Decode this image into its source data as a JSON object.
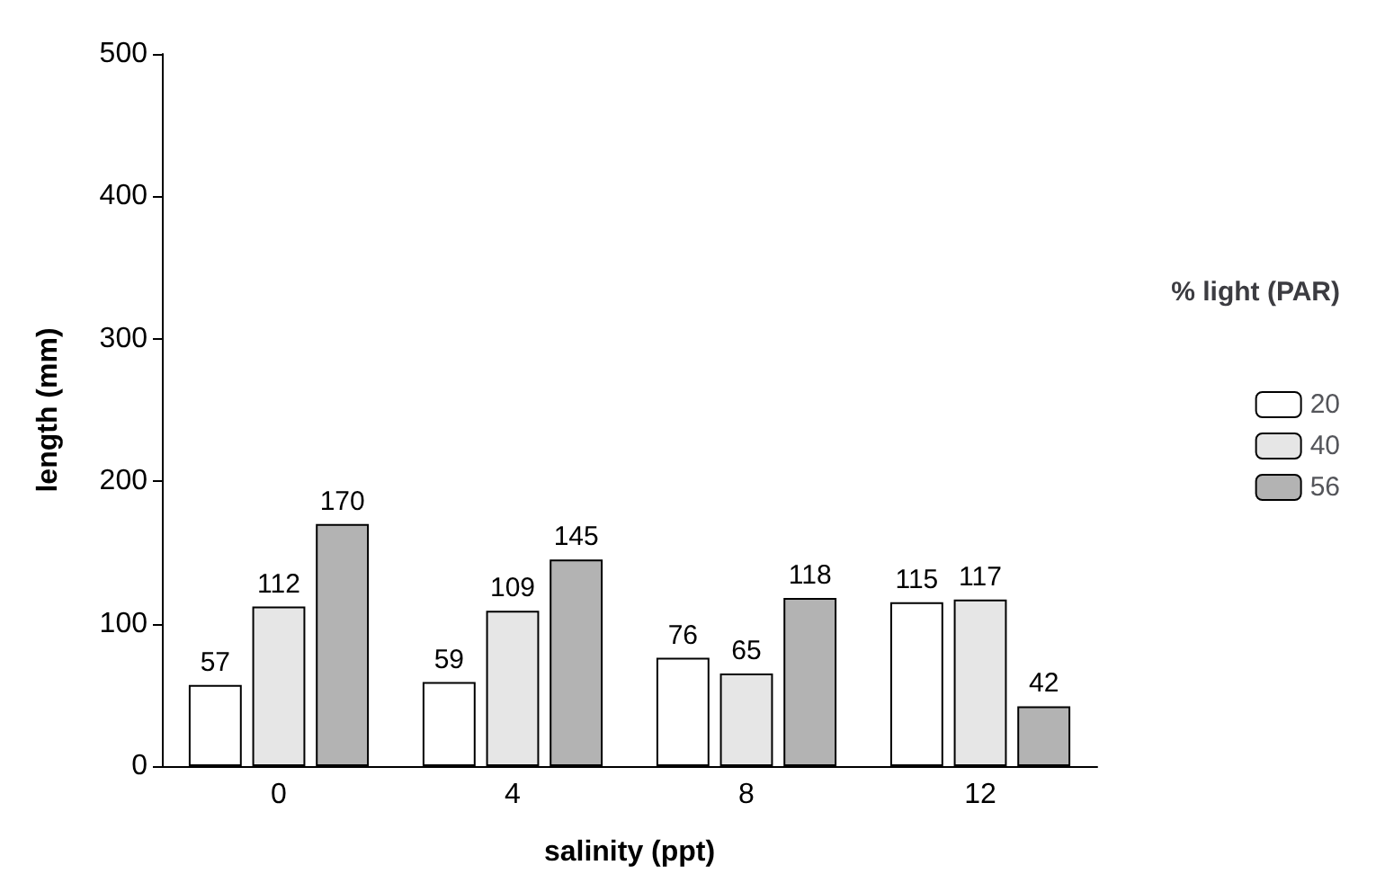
{
  "chart_data": {
    "type": "bar",
    "xlabel": "salinity (ppt)",
    "ylabel": "length (mm)",
    "legend_title": "% light (PAR)",
    "categories": [
      "0",
      "4",
      "8",
      "12"
    ],
    "series": [
      {
        "name": "20",
        "color": "#ffffff",
        "values": [
          57,
          59,
          76,
          115
        ]
      },
      {
        "name": "40",
        "color": "#e6e6e6",
        "values": [
          112,
          109,
          65,
          117
        ]
      },
      {
        "name": "56",
        "color": "#b3b3b3",
        "values": [
          170,
          145,
          118,
          42
        ]
      }
    ],
    "ylim": [
      0,
      500
    ],
    "yticks": [
      0,
      100,
      200,
      300,
      400,
      500
    ],
    "data_labels": true,
    "legend": "right",
    "grid": false
  }
}
